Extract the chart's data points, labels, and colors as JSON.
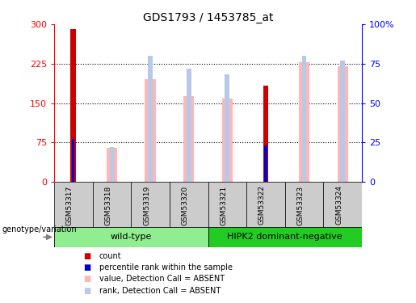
{
  "title": "GDS1793 / 1453785_at",
  "samples": [
    "GSM53317",
    "GSM53318",
    "GSM53319",
    "GSM53320",
    "GSM53321",
    "GSM53322",
    "GSM53323",
    "GSM53324"
  ],
  "count_values": [
    291,
    0,
    0,
    0,
    0,
    183,
    0,
    0
  ],
  "percentile_values": [
    27,
    0,
    0,
    0,
    0,
    23,
    0,
    0
  ],
  "absent_value_bars": [
    0,
    65,
    195,
    163,
    158,
    0,
    228,
    220
  ],
  "absent_rank_bars": [
    0,
    22,
    80,
    72,
    68,
    0,
    80,
    77
  ],
  "ylim_left": [
    0,
    300
  ],
  "ylim_right": [
    0,
    100
  ],
  "yticks_left": [
    0,
    75,
    150,
    225,
    300
  ],
  "ytick_labels_left": [
    "0",
    "75",
    "150",
    "225",
    "300"
  ],
  "yticks_right": [
    0,
    25,
    50,
    75,
    100
  ],
  "ytick_labels_right": [
    "0",
    "25",
    "50",
    "75",
    "100%"
  ],
  "group0_label": "wild-type",
  "group0_color": "#90EE90",
  "group0_samples": [
    0,
    1,
    2,
    3
  ],
  "group1_label": "HIPK2 dominant-negative",
  "group1_color": "#22CC22",
  "group1_samples": [
    4,
    5,
    6,
    7
  ],
  "color_count": "#CC0000",
  "color_percentile": "#0000CC",
  "color_absent_value": "#FFB6B6",
  "color_absent_rank": "#B8C8E8",
  "grid_color": "black",
  "grid_linestyle": "dotted",
  "grid_linewidth": 0.8,
  "xtick_bg": "#CCCCCC",
  "fig_width": 5.15,
  "fig_height": 3.75,
  "dpi": 100
}
